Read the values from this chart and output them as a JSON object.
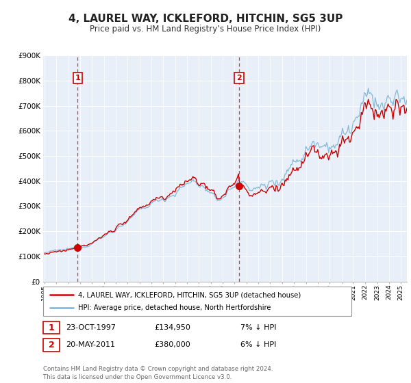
{
  "title": "4, LAUREL WAY, ICKLEFORD, HITCHIN, SG5 3UP",
  "subtitle": "Price paid vs. HM Land Registry’s House Price Index (HPI)",
  "ylim": [
    0,
    900000
  ],
  "yticks": [
    0,
    100000,
    200000,
    300000,
    400000,
    500000,
    600000,
    700000,
    800000,
    900000
  ],
  "ytick_labels": [
    "£0",
    "£100K",
    "£200K",
    "£300K",
    "£400K",
    "£500K",
    "£600K",
    "£700K",
    "£800K",
    "£900K"
  ],
  "xlim_start": 1994.9,
  "xlim_end": 2025.5,
  "sale1_date": 1997.81,
  "sale1_price": 134950,
  "sale2_date": 2011.38,
  "sale2_price": 380000,
  "red_color": "#cc0000",
  "blue_color": "#7ab3d4",
  "bg_color": "#e8eff8",
  "plot_bg": "#ffffff",
  "grid_color": "#ffffff",
  "legend1": "4, LAUREL WAY, ICKLEFORD, HITCHIN, SG5 3UP (detached house)",
  "legend2": "HPI: Average price, detached house, North Hertfordshire",
  "annot1_date": "23-OCT-1997",
  "annot1_price": "£134,950",
  "annot1_hpi": "7% ↓ HPI",
  "annot2_date": "20-MAY-2011",
  "annot2_price": "£380,000",
  "annot2_hpi": "6% ↓ HPI",
  "footer": "Contains HM Land Registry data © Crown copyright and database right 2024.\nThis data is licensed under the Open Government Licence v3.0."
}
